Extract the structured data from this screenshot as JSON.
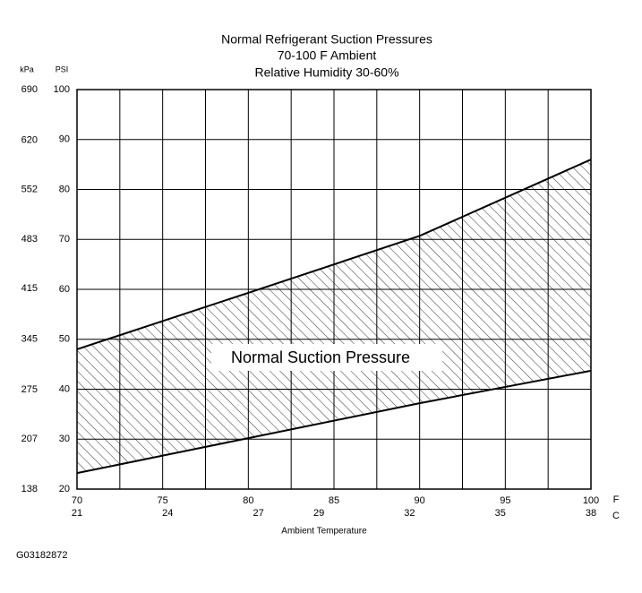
{
  "chart_data": {
    "type": "line",
    "title": "Normal Refrigerant Suction Pressures",
    "subtitle": [
      "70-100 F Ambient",
      "Relative Humidity 30-60%"
    ],
    "xlabel": "Ambient Temperature",
    "x_unit": "F",
    "x2_unit": "C",
    "y_unit": "PSI",
    "y2_unit": "kPa",
    "annotation": "Normal Suction Pressure",
    "figure_id": "G03182872",
    "x": [
      70,
      80,
      90,
      100
    ],
    "series": [
      {
        "color": "#000000",
        "values": [
          48,
          59.3,
          70.7,
          86
        ]
      },
      {
        "color": "#000000",
        "values": [
          23.2,
          30.2,
          37.2,
          43.7
        ]
      }
    ],
    "hatched_between_series": true,
    "xlim": [
      70,
      100
    ],
    "xticks": [
      70,
      75,
      80,
      85,
      90,
      95,
      100
    ],
    "x_minor_grid": [
      72.5,
      77.5,
      82.5,
      87.5,
      92.5,
      97.5
    ],
    "x2lim": [
      21,
      38
    ],
    "x2ticks": [
      21,
      24,
      27,
      29,
      32,
      35,
      38
    ],
    "ylim": [
      20,
      100
    ],
    "yticks": [
      20,
      30,
      40,
      50,
      60,
      70,
      80,
      90,
      100
    ],
    "y2lim": [
      138,
      690
    ],
    "y2ticks": [
      138,
      207,
      275,
      345,
      415,
      483,
      552,
      620,
      690
    ],
    "grid": true
  }
}
